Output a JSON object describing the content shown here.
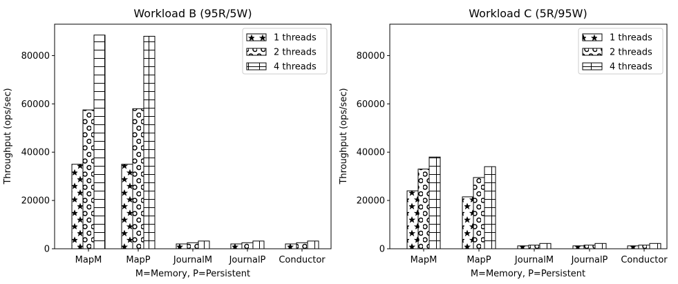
{
  "chart_data": [
    {
      "type": "bar",
      "title": "Workload B (95R/5W)",
      "xlabel": "M=Memory, P=Persistent",
      "ylabel": "Throughput (ops/sec)",
      "ylim": [
        0,
        93000
      ],
      "yticks": [
        0,
        20000,
        40000,
        60000,
        80000
      ],
      "legend_position": "top-right",
      "categories": [
        "MapM",
        "MapP",
        "JournalM",
        "JournalP",
        "Conductor"
      ],
      "series": [
        {
          "name": "1 threads",
          "hatch": "star",
          "values": [
            35000,
            35000,
            2000,
            2000,
            2000
          ]
        },
        {
          "name": "2 threads",
          "hatch": "circle",
          "values": [
            57500,
            58000,
            2500,
            2500,
            2500
          ]
        },
        {
          "name": "4 threads",
          "hatch": "grid",
          "values": [
            88500,
            88000,
            3200,
            3200,
            3200
          ]
        }
      ]
    },
    {
      "type": "bar",
      "title": "Workload C (5R/95W)",
      "xlabel": "M=Memory, P=Persistent",
      "ylabel": "Throughput (ops/sec)",
      "ylim": [
        0,
        93000
      ],
      "yticks": [
        0,
        20000,
        40000,
        60000,
        80000
      ],
      "legend_position": "top-right",
      "categories": [
        "MapM",
        "MapP",
        "JournalM",
        "JournalP",
        "Conductor"
      ],
      "series": [
        {
          "name": "1 threads",
          "hatch": "star",
          "values": [
            24000,
            21500,
            1200,
            1200,
            1200
          ]
        },
        {
          "name": "2 threads",
          "hatch": "circle",
          "values": [
            33000,
            29500,
            1500,
            1500,
            1500
          ]
        },
        {
          "name": "4 threads",
          "hatch": "grid",
          "values": [
            38000,
            34000,
            2200,
            2200,
            2200
          ]
        }
      ]
    }
  ]
}
